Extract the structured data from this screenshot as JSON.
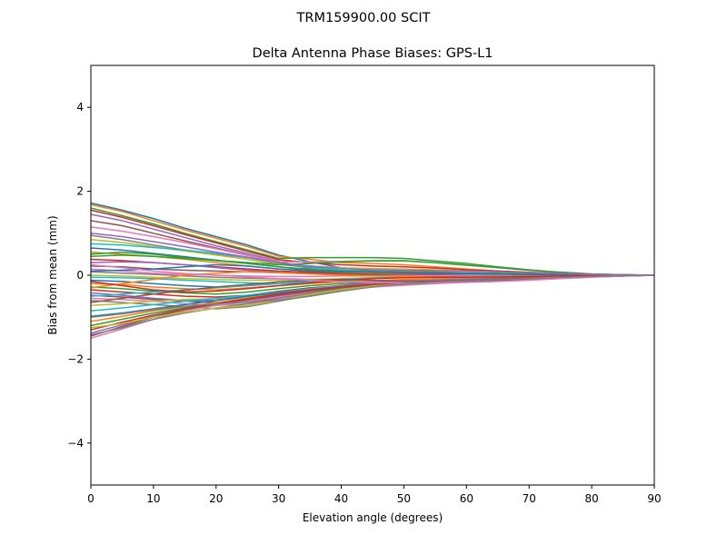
{
  "chart_data": {
    "type": "line",
    "suptitle": "TRM159900.00    SCIT",
    "title": "Delta Antenna Phase Biases: GPS-L1",
    "xlabel": "Elevation angle (degrees)",
    "ylabel": "Bias from mean (mm)",
    "xlim": [
      0,
      90
    ],
    "ylim": [
      -5,
      5
    ],
    "xticks": [
      0,
      10,
      20,
      30,
      40,
      50,
      60,
      70,
      80,
      90
    ],
    "yticks": [
      -4,
      -2,
      0,
      2,
      4
    ],
    "ytick_labels": [
      "−4",
      "−2",
      "0",
      "2",
      "4"
    ],
    "grid": false,
    "legend": "none",
    "colors": [
      "#1f77b4",
      "#ff7f0e",
      "#2ca02c",
      "#d62728",
      "#9467bd",
      "#8c564b",
      "#e377c2",
      "#7f7f7f",
      "#bcbd22",
      "#17becf"
    ],
    "x": [
      0,
      5,
      10,
      15,
      20,
      25,
      30,
      35,
      40,
      45,
      50,
      55,
      60,
      65,
      70,
      75,
      80,
      85,
      90
    ],
    "series": [
      {
        "values": [
          1.72,
          1.55,
          1.35,
          1.12,
          0.92,
          0.72,
          0.48,
          0.32,
          0.18,
          0.1,
          0.05,
          0.02,
          0.0,
          -0.02,
          -0.03,
          -0.03,
          -0.02,
          -0.01,
          0.0
        ]
      },
      {
        "values": [
          1.68,
          1.52,
          1.3,
          1.08,
          0.88,
          0.68,
          0.45,
          0.38,
          0.3,
          0.28,
          0.25,
          0.2,
          0.15,
          0.1,
          0.06,
          0.03,
          0.01,
          0.0,
          0.0
        ]
      },
      {
        "values": [
          1.6,
          1.42,
          1.22,
          1.0,
          0.8,
          0.6,
          0.4,
          0.42,
          0.42,
          0.42,
          0.4,
          0.34,
          0.28,
          0.2,
          0.13,
          0.07,
          0.03,
          0.01,
          0.0
        ]
      },
      {
        "values": [
          1.55,
          1.38,
          1.18,
          0.97,
          0.77,
          0.57,
          0.37,
          0.3,
          0.25,
          0.22,
          0.2,
          0.17,
          0.13,
          0.1,
          0.07,
          0.04,
          0.02,
          0.01,
          0.0
        ]
      },
      {
        "values": [
          1.45,
          1.3,
          1.1,
          0.9,
          0.7,
          0.52,
          0.33,
          0.15,
          0.05,
          0.0,
          -0.03,
          -0.05,
          -0.06,
          -0.06,
          -0.05,
          -0.03,
          -0.02,
          -0.01,
          0.0
        ]
      },
      {
        "values": [
          1.3,
          1.18,
          1.0,
          0.82,
          0.65,
          0.48,
          0.3,
          0.2,
          0.12,
          0.08,
          0.06,
          0.05,
          0.04,
          0.03,
          0.02,
          0.01,
          0.0,
          0.0,
          0.0
        ]
      },
      {
        "values": [
          1.15,
          1.05,
          0.92,
          0.78,
          0.63,
          0.47,
          0.32,
          0.32,
          0.33,
          0.35,
          0.35,
          0.3,
          0.24,
          0.18,
          0.12,
          0.07,
          0.03,
          0.01,
          0.0
        ]
      },
      {
        "values": [
          0.95,
          0.85,
          0.72,
          0.6,
          0.5,
          0.38,
          0.26,
          0.18,
          0.12,
          0.1,
          0.09,
          0.08,
          0.06,
          0.05,
          0.03,
          0.02,
          0.01,
          0.0,
          0.0
        ]
      },
      {
        "values": [
          0.85,
          0.78,
          0.68,
          0.58,
          0.48,
          0.38,
          0.28,
          0.22,
          0.18,
          0.16,
          0.15,
          0.13,
          0.1,
          0.08,
          0.05,
          0.03,
          0.01,
          0.0,
          0.0
        ]
      },
      {
        "values": [
          0.75,
          0.72,
          0.66,
          0.6,
          0.52,
          0.42,
          0.3,
          0.2,
          0.12,
          0.08,
          0.06,
          0.04,
          0.03,
          0.02,
          0.01,
          0.01,
          0.0,
          0.0,
          0.0
        ]
      },
      {
        "values": [
          0.65,
          0.6,
          0.52,
          0.44,
          0.36,
          0.28,
          0.2,
          0.12,
          0.05,
          0.02,
          0.0,
          -0.02,
          -0.03,
          -0.04,
          -0.04,
          -0.03,
          -0.02,
          -0.01,
          0.0
        ]
      },
      {
        "values": [
          0.55,
          0.5,
          0.45,
          0.38,
          0.3,
          0.22,
          0.15,
          0.1,
          0.06,
          0.04,
          0.03,
          0.02,
          0.02,
          0.01,
          0.01,
          0.0,
          0.0,
          0.0,
          0.0
        ]
      },
      {
        "values": [
          0.45,
          0.48,
          0.45,
          0.4,
          0.35,
          0.28,
          0.2,
          0.14,
          0.1,
          0.08,
          0.07,
          0.06,
          0.05,
          0.04,
          0.03,
          0.02,
          0.01,
          0.0,
          0.0
        ]
      },
      {
        "values": [
          0.38,
          0.35,
          0.3,
          0.25,
          0.2,
          0.15,
          0.1,
          0.07,
          0.04,
          0.02,
          0.01,
          0.0,
          0.0,
          -0.01,
          -0.01,
          -0.01,
          0.0,
          0.0,
          0.0
        ]
      },
      {
        "values": [
          0.3,
          0.32,
          0.3,
          0.25,
          0.18,
          0.12,
          0.07,
          0.04,
          0.02,
          0.01,
          0.01,
          0.0,
          0.0,
          0.0,
          0.0,
          0.0,
          0.0,
          0.0,
          0.0
        ]
      },
      {
        "values": [
          0.22,
          0.2,
          0.15,
          0.12,
          0.1,
          0.08,
          0.06,
          0.04,
          0.03,
          0.02,
          0.02,
          0.02,
          0.01,
          0.01,
          0.01,
          0.0,
          0.0,
          0.0,
          0.0
        ]
      },
      {
        "values": [
          0.15,
          0.1,
          0.05,
          0.02,
          0.0,
          -0.02,
          -0.03,
          -0.03,
          -0.02,
          -0.02,
          -0.01,
          -0.01,
          0.0,
          0.0,
          0.0,
          0.0,
          0.0,
          0.0,
          0.0
        ]
      },
      {
        "values": [
          0.08,
          0.05,
          0.02,
          -0.02,
          -0.05,
          -0.07,
          -0.08,
          -0.1,
          -0.12,
          -0.13,
          -0.13,
          -0.12,
          -0.1,
          -0.08,
          -0.06,
          -0.04,
          -0.02,
          -0.01,
          0.0
        ]
      },
      {
        "values": [
          0.0,
          -0.02,
          -0.05,
          -0.08,
          -0.1,
          -0.12,
          -0.12,
          -0.1,
          -0.08,
          -0.06,
          -0.05,
          -0.04,
          -0.03,
          -0.02,
          -0.02,
          -0.01,
          0.0,
          0.0,
          0.0
        ]
      },
      {
        "values": [
          -0.05,
          -0.06,
          -0.08,
          -0.12,
          -0.15,
          -0.18,
          -0.2,
          -0.18,
          -0.16,
          -0.14,
          -0.12,
          -0.1,
          -0.08,
          -0.06,
          -0.04,
          -0.02,
          -0.01,
          0.0,
          0.0
        ]
      },
      {
        "values": [
          -0.12,
          -0.15,
          -0.2,
          -0.25,
          -0.28,
          -0.25,
          -0.2,
          -0.15,
          -0.1,
          -0.07,
          -0.05,
          -0.04,
          -0.03,
          -0.02,
          -0.01,
          -0.01,
          0.0,
          0.0,
          0.0
        ]
      },
      {
        "values": [
          -0.2,
          -0.22,
          -0.28,
          -0.32,
          -0.35,
          -0.3,
          -0.25,
          -0.2,
          -0.16,
          -0.13,
          -0.1,
          -0.08,
          -0.06,
          -0.04,
          -0.02,
          -0.01,
          0.0,
          0.0,
          0.0
        ]
      },
      {
        "values": [
          -0.28,
          -0.32,
          -0.38,
          -0.42,
          -0.45,
          -0.4,
          -0.32,
          -0.25,
          -0.2,
          -0.17,
          -0.15,
          -0.13,
          -0.1,
          -0.08,
          -0.05,
          -0.03,
          -0.01,
          0.0,
          0.0
        ]
      },
      {
        "values": [
          -0.35,
          -0.4,
          -0.45,
          -0.5,
          -0.52,
          -0.48,
          -0.38,
          -0.3,
          -0.25,
          -0.22,
          -0.2,
          -0.17,
          -0.14,
          -0.11,
          -0.08,
          -0.05,
          -0.02,
          -0.01,
          0.0
        ]
      },
      {
        "values": [
          -0.42,
          -0.48,
          -0.55,
          -0.6,
          -0.6,
          -0.52,
          -0.42,
          -0.32,
          -0.24,
          -0.18,
          -0.14,
          -0.12,
          -0.1,
          -0.08,
          -0.05,
          -0.03,
          -0.01,
          0.0,
          0.0
        ]
      },
      {
        "values": [
          -0.48,
          -0.52,
          -0.58,
          -0.62,
          -0.65,
          -0.62,
          -0.55,
          -0.42,
          -0.3,
          -0.22,
          -0.17,
          -0.14,
          -0.12,
          -0.09,
          -0.06,
          -0.04,
          -0.02,
          -0.01,
          0.0
        ]
      },
      {
        "values": [
          -0.55,
          -0.58,
          -0.62,
          -0.68,
          -0.72,
          -0.68,
          -0.58,
          -0.45,
          -0.33,
          -0.25,
          -0.2,
          -0.18,
          -0.15,
          -0.12,
          -0.09,
          -0.06,
          -0.03,
          -0.01,
          0.0
        ]
      },
      {
        "values": [
          -0.6,
          -0.65,
          -0.7,
          -0.75,
          -0.8,
          -0.75,
          -0.62,
          -0.48,
          -0.36,
          -0.28,
          -0.22,
          -0.19,
          -0.16,
          -0.13,
          -0.1,
          -0.07,
          -0.04,
          -0.02,
          0.0
        ]
      },
      {
        "values": [
          -0.72,
          -0.68,
          -0.62,
          -0.58,
          -0.56,
          -0.52,
          -0.45,
          -0.38,
          -0.3,
          -0.25,
          -0.22,
          -0.19,
          -0.16,
          -0.13,
          -0.1,
          -0.07,
          -0.04,
          -0.02,
          0.0
        ]
      },
      {
        "values": [
          -0.85,
          -0.78,
          -0.7,
          -0.62,
          -0.55,
          -0.48,
          -0.4,
          -0.32,
          -0.26,
          -0.22,
          -0.2,
          -0.18,
          -0.15,
          -0.12,
          -0.09,
          -0.06,
          -0.03,
          -0.01,
          0.0
        ]
      },
      {
        "values": [
          -0.98,
          -0.9,
          -0.8,
          -0.7,
          -0.6,
          -0.5,
          -0.42,
          -0.35,
          -0.28,
          -0.24,
          -0.21,
          -0.18,
          -0.15,
          -0.12,
          -0.09,
          -0.06,
          -0.03,
          -0.01,
          0.0
        ]
      },
      {
        "values": [
          -1.1,
          -0.98,
          -0.85,
          -0.75,
          -0.65,
          -0.55,
          -0.45,
          -0.36,
          -0.28,
          -0.22,
          -0.18,
          -0.16,
          -0.14,
          -0.12,
          -0.09,
          -0.06,
          -0.03,
          -0.01,
          0.0
        ]
      },
      {
        "values": [
          -1.2,
          -1.05,
          -0.9,
          -0.78,
          -0.68,
          -0.58,
          -0.48,
          -0.38,
          -0.3,
          -0.25,
          -0.21,
          -0.18,
          -0.15,
          -0.12,
          -0.09,
          -0.06,
          -0.03,
          -0.01,
          0.0
        ]
      },
      {
        "values": [
          -1.3,
          -1.12,
          -0.95,
          -0.8,
          -0.68,
          -0.56,
          -0.45,
          -0.35,
          -0.27,
          -0.22,
          -0.19,
          -0.17,
          -0.15,
          -0.12,
          -0.09,
          -0.06,
          -0.03,
          -0.01,
          0.0
        ]
      },
      {
        "values": [
          -1.38,
          -1.18,
          -0.98,
          -0.82,
          -0.72,
          -0.62,
          -0.5,
          -0.4,
          -0.32,
          -0.26,
          -0.22,
          -0.19,
          -0.16,
          -0.13,
          -0.1,
          -0.07,
          -0.04,
          -0.02,
          0.0
        ]
      },
      {
        "values": [
          -1.45,
          -1.22,
          -1.0,
          -0.82,
          -0.7,
          -0.6,
          -0.48,
          -0.38,
          -0.3,
          -0.24,
          -0.2,
          -0.18,
          -0.15,
          -0.12,
          -0.09,
          -0.06,
          -0.03,
          -0.01,
          0.0
        ]
      },
      {
        "values": [
          -1.5,
          -1.28,
          -1.05,
          -0.85,
          -0.72,
          -0.62,
          -0.52,
          -0.42,
          -0.34,
          -0.28,
          -0.24,
          -0.2,
          -0.17,
          -0.14,
          -0.1,
          -0.07,
          -0.04,
          -0.02,
          0.0
        ]
      },
      {
        "values": [
          -1.42,
          -1.25,
          -1.05,
          -0.9,
          -0.78,
          -0.68,
          -0.55,
          -0.43,
          -0.33,
          -0.26,
          -0.21,
          -0.18,
          -0.15,
          -0.12,
          -0.09,
          -0.06,
          -0.03,
          -0.01,
          0.0
        ]
      },
      {
        "values": [
          -1.25,
          -1.15,
          -1.0,
          -0.88,
          -0.78,
          -0.72,
          -0.6,
          -0.46,
          -0.34,
          -0.26,
          -0.2,
          -0.17,
          -0.14,
          -0.11,
          -0.08,
          -0.05,
          -0.03,
          -0.01,
          0.0
        ]
      },
      {
        "values": [
          -0.5,
          -0.45,
          -0.4,
          -0.35,
          -0.3,
          -0.25,
          -0.2,
          -0.15,
          -0.1,
          -0.07,
          -0.05,
          -0.04,
          -0.03,
          -0.02,
          -0.01,
          -0.01,
          0.0,
          0.0,
          0.0
        ]
      },
      {
        "values": [
          0.1,
          0.12,
          0.15,
          0.2,
          0.25,
          0.22,
          0.15,
          0.1,
          0.08,
          0.07,
          0.06,
          0.05,
          0.04,
          0.03,
          0.02,
          0.01,
          0.0,
          0.0,
          0.0
        ]
      },
      {
        "values": [
          -0.3,
          -0.2,
          -0.1,
          0.0,
          0.05,
          0.08,
          0.06,
          0.03,
          0.0,
          -0.02,
          -0.03,
          -0.04,
          -0.04,
          -0.03,
          -0.02,
          -0.02,
          -0.01,
          0.0,
          0.0
        ]
      },
      {
        "values": [
          0.5,
          0.55,
          0.5,
          0.42,
          0.35,
          0.3,
          0.25,
          0.28,
          0.32,
          0.34,
          0.34,
          0.3,
          0.24,
          0.18,
          0.12,
          0.07,
          0.03,
          0.01,
          0.0
        ]
      },
      {
        "values": [
          -0.15,
          -0.25,
          -0.35,
          -0.4,
          -0.38,
          -0.32,
          -0.25,
          -0.18,
          -0.12,
          -0.08,
          -0.06,
          -0.05,
          -0.05,
          -0.04,
          -0.03,
          -0.02,
          -0.01,
          0.0,
          0.0
        ]
      },
      {
        "values": [
          1.0,
          0.92,
          0.8,
          0.68,
          0.55,
          0.43,
          0.3,
          0.22,
          0.16,
          0.13,
          0.12,
          0.11,
          0.1,
          0.08,
          0.06,
          0.04,
          0.02,
          0.01,
          0.0
        ]
      },
      {
        "values": [
          -0.65,
          -0.55,
          -0.45,
          -0.36,
          -0.28,
          -0.22,
          -0.16,
          -0.12,
          -0.1,
          -0.12,
          -0.14,
          -0.15,
          -0.15,
          -0.13,
          -0.1,
          -0.07,
          -0.04,
          -0.02,
          0.0
        ]
      },
      {
        "values": [
          0.25,
          0.18,
          0.1,
          0.04,
          0.0,
          -0.04,
          -0.08,
          -0.12,
          -0.15,
          -0.17,
          -0.18,
          -0.18,
          -0.17,
          -0.15,
          -0.12,
          -0.08,
          -0.05,
          -0.02,
          0.0
        ]
      },
      {
        "values": [
          -1.0,
          -0.92,
          -0.82,
          -0.74,
          -0.68,
          -0.64,
          -0.6,
          -0.5,
          -0.38,
          -0.28,
          -0.2,
          -0.16,
          -0.13,
          -0.1,
          -0.08,
          -0.05,
          -0.03,
          -0.01,
          0.0
        ]
      }
    ]
  }
}
